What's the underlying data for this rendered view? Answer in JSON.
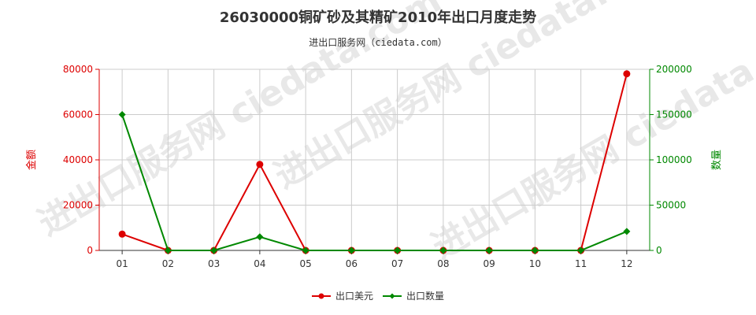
{
  "chart_data": {
    "type": "line",
    "title": "26030000铜矿砂及其精矿2010年出口月度走势",
    "subtitle": "进出口服务网（ciedata.com）",
    "watermark": "进出口服务网 ciedata.com",
    "categories": [
      "01",
      "02",
      "03",
      "04",
      "05",
      "06",
      "07",
      "08",
      "09",
      "10",
      "11",
      "12"
    ],
    "left_axis": {
      "label": "金额",
      "min": 0,
      "max": 80000,
      "ticks": [
        "0",
        "20000",
        "40000",
        "60000",
        "80000"
      ]
    },
    "right_axis": {
      "label": "数量",
      "min": 0,
      "max": 200000,
      "ticks": [
        "0",
        "50000",
        "100000",
        "150000",
        "200000"
      ]
    },
    "series": [
      {
        "name": "出口美元",
        "axis": "left",
        "color": "#dd0000",
        "marker": "circle",
        "values": [
          7200,
          0,
          0,
          38000,
          0,
          0,
          0,
          0,
          0,
          0,
          0,
          78000
        ]
      },
      {
        "name": "出口数量",
        "axis": "right",
        "color": "#008800",
        "marker": "diamond",
        "values": [
          150000,
          0,
          0,
          15000,
          0,
          0,
          0,
          0,
          0,
          0,
          0,
          21000
        ]
      }
    ],
    "grid": true,
    "legend_position": "bottom-center"
  }
}
